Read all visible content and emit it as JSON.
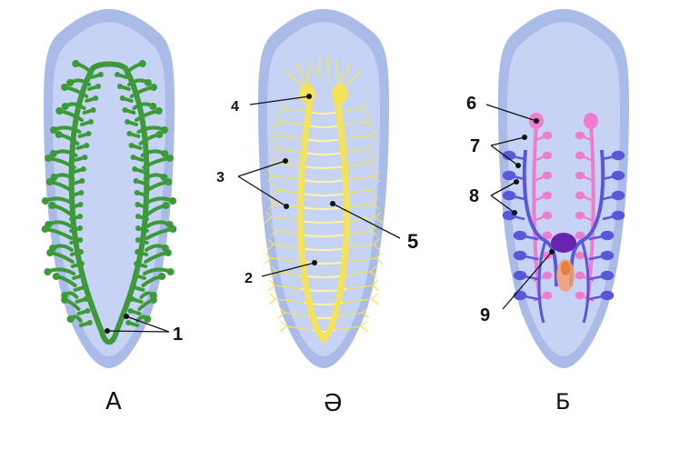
{
  "panels": [
    {
      "id": "A",
      "caption": "А"
    },
    {
      "id": "AE",
      "caption": "Ә"
    },
    {
      "id": "B",
      "caption": "Б"
    }
  ],
  "labels": {
    "n1": "1",
    "n2": "2",
    "n3": "3",
    "n4": "4",
    "n5": "5",
    "n6": "6",
    "n7": "7",
    "n8": "8",
    "n9": "9"
  },
  "colors": {
    "body_outer": "#aabbe8",
    "body_inner": "#c7d3f4",
    "gut": "#3c9a38",
    "nerve": "#f2e35a",
    "nerve_light": "#fff3a0",
    "excretory": "#f07cd0",
    "reproductive": "#5858d8",
    "pharynx": "#6a22b0",
    "orange": "#f2a070"
  }
}
